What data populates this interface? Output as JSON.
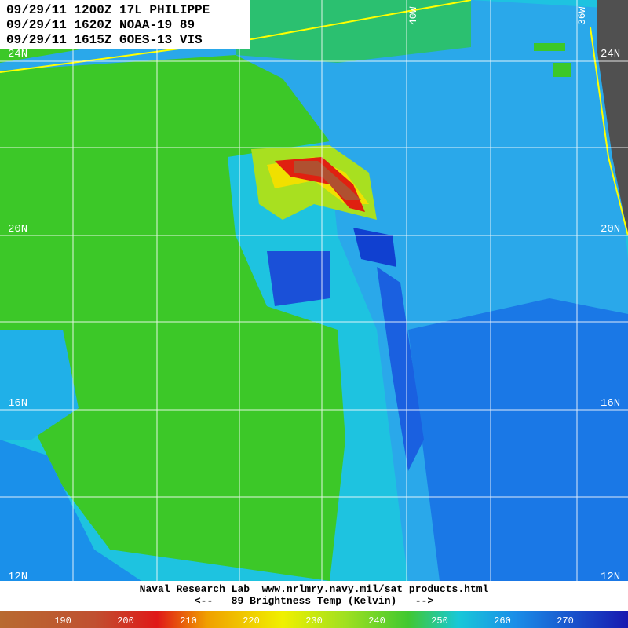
{
  "header": {
    "lines": [
      "09/29/11 1200Z 17L PHILIPPE",
      "09/29/11 1620Z NOAA-19 89",
      "09/29/11 1615Z GOES-13 VIS"
    ]
  },
  "latitude_labels": [
    "24N",
    "20N",
    "16N",
    "12N"
  ],
  "longitude_labels": [
    "40W",
    "36W"
  ],
  "footer": {
    "lines": [
      "Naval Research Lab  www.nrlmry.navy.mil/sat_products.html",
      "<--   89 Brightness Temp (Kelvin)   -->"
    ]
  },
  "colorbar": {
    "labels": [
      190,
      200,
      210,
      220,
      230,
      240,
      250,
      260,
      270
    ]
  }
}
